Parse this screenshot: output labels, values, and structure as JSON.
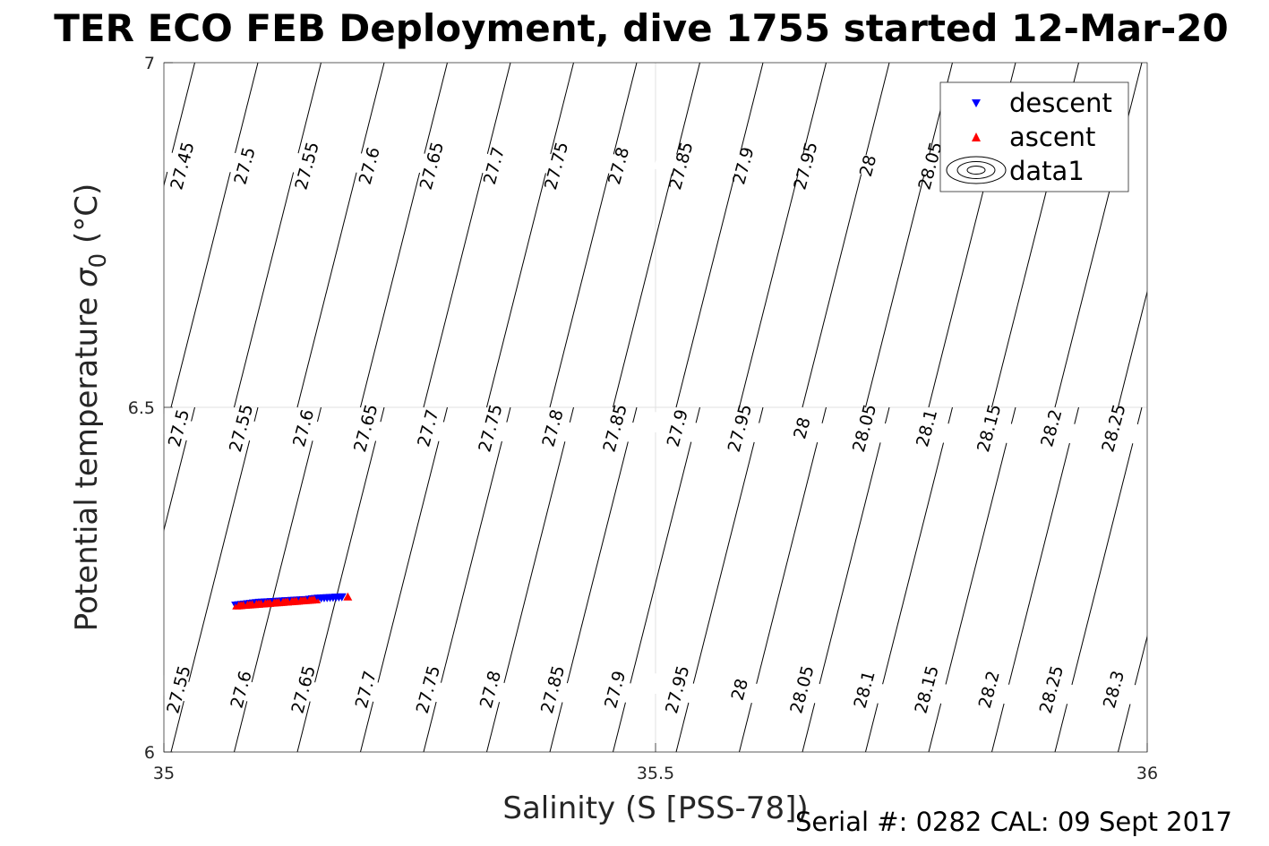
{
  "chart_data": {
    "type": "scatter",
    "title": "TER ECO FEB Deployment, dive 1755 started 12-Mar-20",
    "xlabel": "Salinity (S [PSS-78])",
    "ylabel": "Potential temperature σ₀ (°C)",
    "ylabel_main": "Potential temperature ",
    "ylabel_sigma": "σ",
    "ylabel_sub": "0",
    "ylabel_unit": " (°C)",
    "xlim": [
      35,
      36
    ],
    "ylim": [
      6,
      7
    ],
    "x_ticks": [
      35,
      35.5,
      36
    ],
    "x_tick_labels": [
      "35",
      "35.5",
      "36"
    ],
    "y_ticks": [
      6,
      6.5,
      7
    ],
    "y_tick_labels": [
      "6",
      "6.5",
      "7"
    ],
    "grid": true,
    "legend_position": "top-right",
    "series": [
      {
        "name": "descent",
        "marker": "triangle-down",
        "color": "#0000ff",
        "x": [
          35.073,
          35.085,
          35.097,
          35.109,
          35.121,
          35.133,
          35.145,
          35.157,
          35.169,
          35.181
        ],
        "y": [
          6.213,
          6.215,
          6.217,
          6.218,
          6.219,
          6.22,
          6.221,
          6.223,
          6.224,
          6.225
        ]
      },
      {
        "name": "ascent",
        "marker": "triangle-up",
        "color": "#ff0000",
        "x": [
          35.074,
          35.083,
          35.092,
          35.101,
          35.11,
          35.119,
          35.128,
          35.137,
          35.146,
          35.155,
          35.187
        ],
        "y": [
          6.212,
          6.213,
          6.214,
          6.215,
          6.216,
          6.217,
          6.218,
          6.219,
          6.22,
          6.221,
          6.225
        ]
      }
    ],
    "contour_legend": "data1",
    "contour_color": "#000000",
    "contour_labels_row_top": [
      "27.45",
      "27.5",
      "27.55",
      "27.6",
      "27.65",
      "27.7",
      "27.75",
      "27.8",
      "27.85",
      "27.9",
      "27.95",
      "28",
      "28.05"
    ],
    "contour_labels_row_mid": [
      "27.5",
      "27.55",
      "27.6",
      "27.65",
      "27.7",
      "27.75",
      "27.8",
      "27.85",
      "27.9",
      "27.95",
      "28",
      "28.05",
      "28.1",
      "28.15",
      "28.2",
      "28.25"
    ],
    "contour_labels_row_bottom": [
      "27.55",
      "27.6",
      "27.65",
      "27.7",
      "27.75",
      "27.8",
      "27.85",
      "27.9",
      "27.95",
      "28",
      "28.05",
      "28.1",
      "28.15",
      "28.2",
      "28.25",
      "28.3"
    ]
  },
  "footer": {
    "serial": "Serial #: 0282  CAL: 09 Sept 2017"
  }
}
